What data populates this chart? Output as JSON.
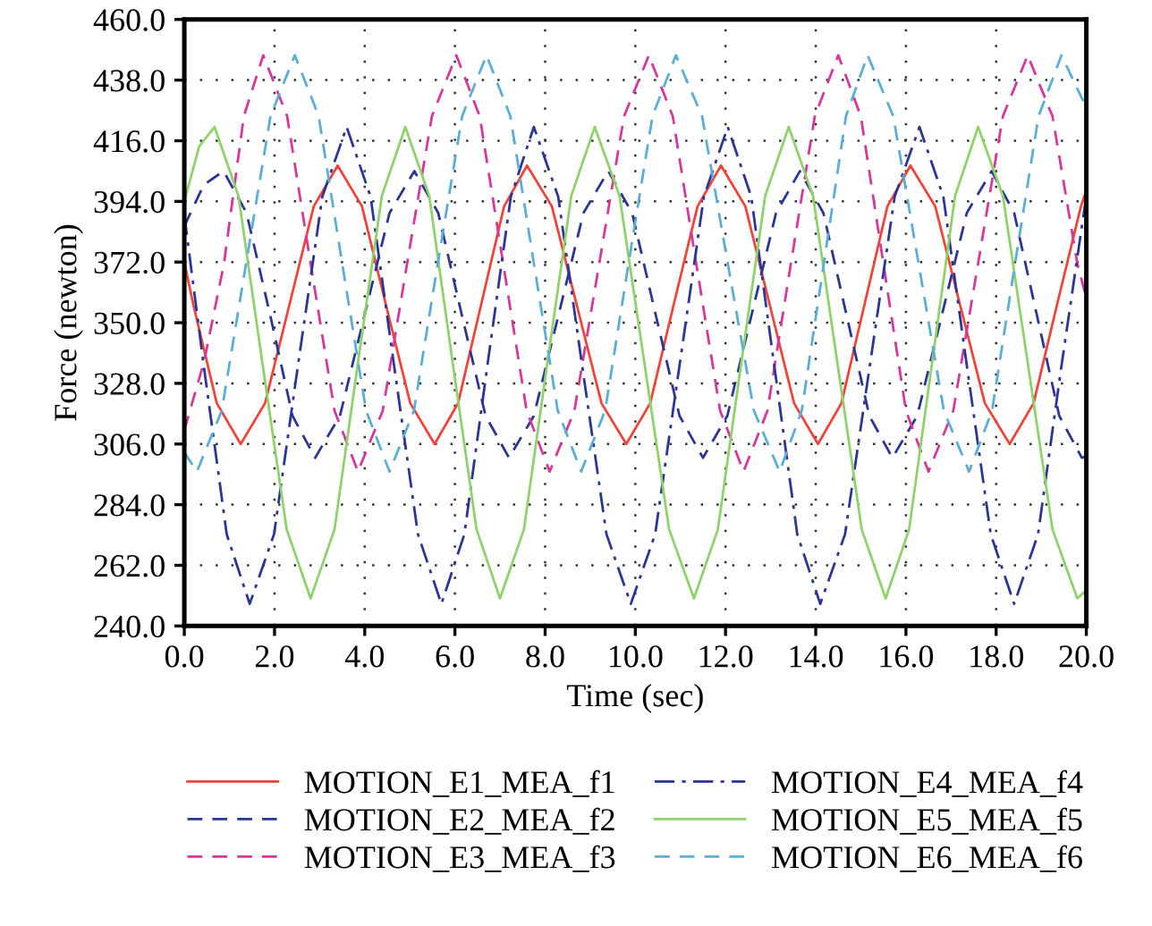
{
  "chart_data": {
    "type": "line",
    "xlabel": "Time (sec)",
    "ylabel": "Force (newton)",
    "xlim": [
      0,
      20
    ],
    "ylim": [
      240,
      460
    ],
    "xticks": [
      {
        "value": 0,
        "label": "0.0"
      },
      {
        "value": 2,
        "label": "2.0"
      },
      {
        "value": 4,
        "label": "4.0"
      },
      {
        "value": 6,
        "label": "6.0"
      },
      {
        "value": 8,
        "label": "8.0"
      },
      {
        "value": 10,
        "label": "10.0"
      },
      {
        "value": 12,
        "label": "12.0"
      },
      {
        "value": 14,
        "label": "14.0"
      },
      {
        "value": 16,
        "label": "16.0"
      },
      {
        "value": 18,
        "label": "18.0"
      },
      {
        "value": 20,
        "label": "20.0"
      }
    ],
    "yticks": [
      {
        "value": 240,
        "label": "240.0"
      },
      {
        "value": 262,
        "label": "262.0"
      },
      {
        "value": 284,
        "label": "284.0"
      },
      {
        "value": 306,
        "label": "306.0"
      },
      {
        "value": 328,
        "label": "328.0"
      },
      {
        "value": 350,
        "label": "350.0"
      },
      {
        "value": 372,
        "label": "372.0"
      },
      {
        "value": 394,
        "label": "394.0"
      },
      {
        "value": 416,
        "label": "416.0"
      },
      {
        "value": 438,
        "label": "438.0"
      },
      {
        "value": 460,
        "label": "460.0"
      }
    ],
    "grid": true,
    "legend": "bottom",
    "marker": "none",
    "series": [
      {
        "name": "MOTION_E1_MEA_f1",
        "color": "#f0443a",
        "line_style": "solid",
        "x": [
          0,
          0.2,
          0.72,
          1.25,
          1.79,
          2.33,
          2.87,
          3.4,
          3.94,
          4.47,
          5.01,
          5.55,
          6.07,
          6.58,
          7.09,
          7.6,
          8.15,
          8.7,
          9.25,
          9.8,
          10.33,
          10.85,
          11.38,
          11.9,
          12.44,
          12.98,
          13.52,
          14.05,
          14.57,
          15.08,
          15.59,
          16.1,
          16.65,
          17.2,
          17.75,
          18.3,
          18.83,
          19.35,
          19.88,
          20
        ],
        "values": [
          372,
          356.5,
          320.8,
          306,
          320.8,
          356.5,
          392.2,
          407,
          392.2,
          356.5,
          320.8,
          306,
          320.8,
          356.5,
          392.2,
          407,
          392.2,
          356.5,
          320.8,
          306,
          320.8,
          356.5,
          392.2,
          407,
          392.2,
          356.5,
          320.8,
          306,
          320.8,
          356.5,
          392.2,
          407,
          392.2,
          356.5,
          320.8,
          306,
          320.8,
          356.5,
          392.2,
          398
        ]
      },
      {
        "name": "MOTION_E2_MEA_f2",
        "color": "#2b3595",
        "line_style": "dashed",
        "x": [
          0,
          0.43,
          0.87,
          1.38,
          1.9,
          2.4,
          2.9,
          3.45,
          4.0,
          4.55,
          5.1,
          5.63,
          6.15,
          6.68,
          7.2,
          7.75,
          8.3,
          8.85,
          9.4,
          9.93,
          10.45,
          10.98,
          11.5,
          12.04,
          12.58,
          13.12,
          13.65,
          14.17,
          14.68,
          15.19,
          15.7,
          16.25,
          16.8,
          17.35,
          17.9,
          18.4,
          18.9,
          19.4,
          19.9,
          20
        ],
        "values": [
          385,
          400,
          405,
          389.8,
          353,
          316.2,
          301,
          316.2,
          353,
          389.8,
          405,
          389.8,
          353,
          316.2,
          301,
          316.2,
          353,
          389.8,
          405,
          389.8,
          353,
          316.2,
          301,
          316.2,
          353,
          389.8,
          405,
          389.8,
          353,
          316.2,
          301,
          316.2,
          353,
          389.8,
          405,
          389.8,
          353,
          316.2,
          301,
          301.5
        ]
      },
      {
        "name": "MOTION_E3_MEA_f3",
        "color": "#d6379b",
        "line_style": "dashed",
        "x": [
          0,
          0.44,
          0.88,
          1.32,
          1.75,
          2.28,
          2.8,
          3.33,
          3.85,
          4.4,
          4.94,
          5.49,
          6.03,
          6.55,
          7.07,
          7.59,
          8.1,
          8.65,
          9.2,
          9.75,
          10.3,
          10.83,
          11.35,
          11.88,
          12.4,
          12.93,
          13.45,
          13.98,
          14.5,
          15.0,
          15.5,
          16.0,
          16.5,
          17.05,
          17.6,
          18.15,
          18.7,
          19.25,
          19.8,
          20
        ],
        "values": [
          311,
          336,
          371.5,
          424.9,
          447,
          424.9,
          371.5,
          318.1,
          296,
          318.1,
          371.5,
          424.9,
          447,
          424.9,
          371.5,
          318.1,
          296,
          318.1,
          371.5,
          424.9,
          447,
          424.9,
          371.5,
          318.1,
          296,
          318.1,
          371.5,
          424.9,
          447,
          424.9,
          371.5,
          318.1,
          296,
          318.1,
          371.5,
          424.9,
          447,
          424.9,
          371.5,
          359
        ]
      },
      {
        "name": "MOTION_E4_MEA_f4",
        "color": "#2b3595",
        "line_style": "dashdot",
        "x": [
          0,
          0.43,
          0.94,
          1.45,
          1.99,
          2.52,
          3.06,
          3.6,
          4.13,
          4.65,
          5.18,
          5.7,
          6.21,
          6.72,
          7.24,
          7.75,
          8.29,
          8.82,
          9.36,
          9.9,
          10.44,
          10.98,
          11.52,
          12.05,
          12.57,
          13.08,
          13.59,
          14.1,
          14.65,
          15.2,
          15.75,
          16.3,
          16.83,
          17.35,
          17.88,
          18.4,
          18.93,
          19.45,
          20
        ],
        "values": [
          389,
          334.5,
          273.3,
          248,
          273.3,
          334.5,
          395.7,
          421,
          395.7,
          334.5,
          273.3,
          248,
          273.3,
          334.5,
          395.7,
          421,
          395.7,
          334.5,
          273.3,
          248,
          273.3,
          334.5,
          395.7,
          421,
          395.7,
          334.5,
          273.3,
          248,
          273.3,
          334.5,
          395.7,
          421,
          395.7,
          334.5,
          273.3,
          248,
          273.3,
          334.5,
          396
        ]
      },
      {
        "name": "MOTION_E5_MEA_f5",
        "color": "#8fd16a",
        "line_style": "solid",
        "x": [
          0,
          0.33,
          0.67,
          1.2,
          1.73,
          2.27,
          2.8,
          3.33,
          3.85,
          4.38,
          4.9,
          5.43,
          5.95,
          6.48,
          7.0,
          7.53,
          8.05,
          8.58,
          9.1,
          9.65,
          10.2,
          10.75,
          11.3,
          11.83,
          12.35,
          12.88,
          13.4,
          13.94,
          14.48,
          15.02,
          15.55,
          16.07,
          16.58,
          17.09,
          17.6,
          18.15,
          18.7,
          19.25,
          19.8,
          20
        ],
        "values": [
          394,
          414,
          421,
          396,
          335.5,
          275,
          250,
          275,
          335.5,
          396,
          421,
          396,
          335.5,
          275,
          250,
          275,
          335.5,
          396,
          421,
          396,
          335.5,
          275,
          250,
          275,
          335.5,
          396,
          421,
          396,
          335.5,
          275,
          250,
          275,
          335.5,
          396,
          421,
          396,
          335.5,
          275,
          250,
          253
        ]
      },
      {
        "name": "MOTION_E6_MEA_f6",
        "color": "#5aaed6",
        "line_style": "dashed",
        "x": [
          0,
          0.28,
          0.83,
          1.37,
          1.91,
          2.45,
          2.98,
          3.5,
          4.03,
          4.55,
          5.09,
          5.62,
          6.16,
          6.7,
          7.23,
          7.75,
          8.28,
          8.8,
          9.33,
          9.85,
          10.38,
          10.9,
          11.48,
          12.05,
          12.63,
          13.2,
          13.69,
          14.18,
          14.67,
          15.15,
          15.72,
          16.28,
          16.84,
          17.4,
          17.91,
          18.42,
          18.94,
          19.45,
          20
        ],
        "values": [
          303,
          296,
          318.1,
          371.5,
          424.9,
          447,
          424.9,
          371.5,
          318.1,
          296,
          318.1,
          371.5,
          424.9,
          447,
          424.9,
          371.5,
          318.1,
          296,
          318.1,
          371.5,
          424.9,
          447,
          424.9,
          371.5,
          318.1,
          296,
          318.1,
          371.5,
          424.9,
          447,
          424.9,
          371.5,
          318.1,
          296,
          318.1,
          371.5,
          424.9,
          447,
          428
        ]
      }
    ]
  }
}
